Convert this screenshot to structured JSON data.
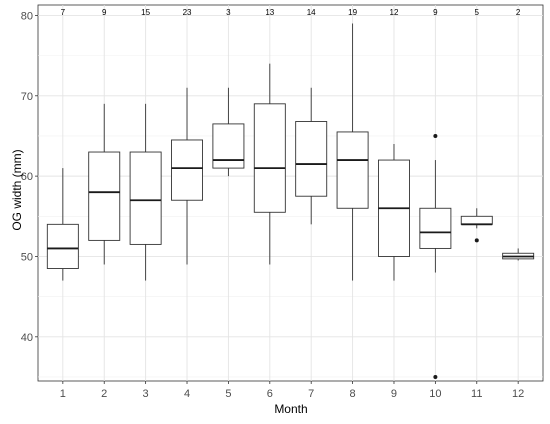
{
  "chart_data": {
    "type": "box",
    "xlabel": "Month",
    "ylabel": "OG width (mm)",
    "ylim": [
      34.5,
      81.3
    ],
    "yticks": [
      40,
      50,
      60,
      70,
      80
    ],
    "grid": true,
    "categories": [
      "1",
      "2",
      "3",
      "4",
      "5",
      "6",
      "7",
      "8",
      "9",
      "10",
      "11",
      "12"
    ],
    "counts": [
      "7",
      "9",
      "15",
      "23",
      "3",
      "13",
      "14",
      "19",
      "12",
      "9",
      "5",
      "2"
    ],
    "boxes": [
      {
        "x": "1",
        "n": 7,
        "whisker_low": 47,
        "q1": 48.5,
        "median": 51,
        "q3": 54,
        "whisker_high": 61,
        "outliers": []
      },
      {
        "x": "2",
        "n": 9,
        "whisker_low": 49,
        "q1": 52,
        "median": 58,
        "q3": 63,
        "whisker_high": 69,
        "outliers": []
      },
      {
        "x": "3",
        "n": 15,
        "whisker_low": 47,
        "q1": 51.5,
        "median": 57,
        "q3": 63,
        "whisker_high": 69,
        "outliers": []
      },
      {
        "x": "4",
        "n": 23,
        "whisker_low": 49,
        "q1": 57,
        "median": 61,
        "q3": 64.5,
        "whisker_high": 71,
        "outliers": []
      },
      {
        "x": "5",
        "n": 3,
        "whisker_low": 60,
        "q1": 61,
        "median": 62,
        "q3": 66.5,
        "whisker_high": 71,
        "outliers": []
      },
      {
        "x": "6",
        "n": 13,
        "whisker_low": 49,
        "q1": 55.5,
        "median": 61,
        "q3": 69,
        "whisker_high": 74,
        "outliers": []
      },
      {
        "x": "7",
        "n": 14,
        "whisker_low": 54,
        "q1": 57.5,
        "median": 61.5,
        "q3": 66.8,
        "whisker_high": 71,
        "outliers": []
      },
      {
        "x": "8",
        "n": 19,
        "whisker_low": 47,
        "q1": 56,
        "median": 62,
        "q3": 65.5,
        "whisker_high": 79,
        "outliers": []
      },
      {
        "x": "9",
        "n": 12,
        "whisker_low": 47,
        "q1": 50,
        "median": 56,
        "q3": 62,
        "whisker_high": 64,
        "outliers": []
      },
      {
        "x": "10",
        "n": 9,
        "whisker_low": 48,
        "q1": 51,
        "median": 53,
        "q3": 56,
        "whisker_high": 62,
        "outliers": [
          65,
          35
        ]
      },
      {
        "x": "11",
        "n": 5,
        "whisker_low": 53.5,
        "q1": 54,
        "median": 54,
        "q3": 55,
        "whisker_high": 56,
        "outliers": [
          52
        ]
      },
      {
        "x": "12",
        "n": 2,
        "whisker_low": 49.5,
        "q1": 49.7,
        "median": 50,
        "q3": 50.4,
        "whisker_high": 51,
        "outliers": []
      }
    ]
  }
}
